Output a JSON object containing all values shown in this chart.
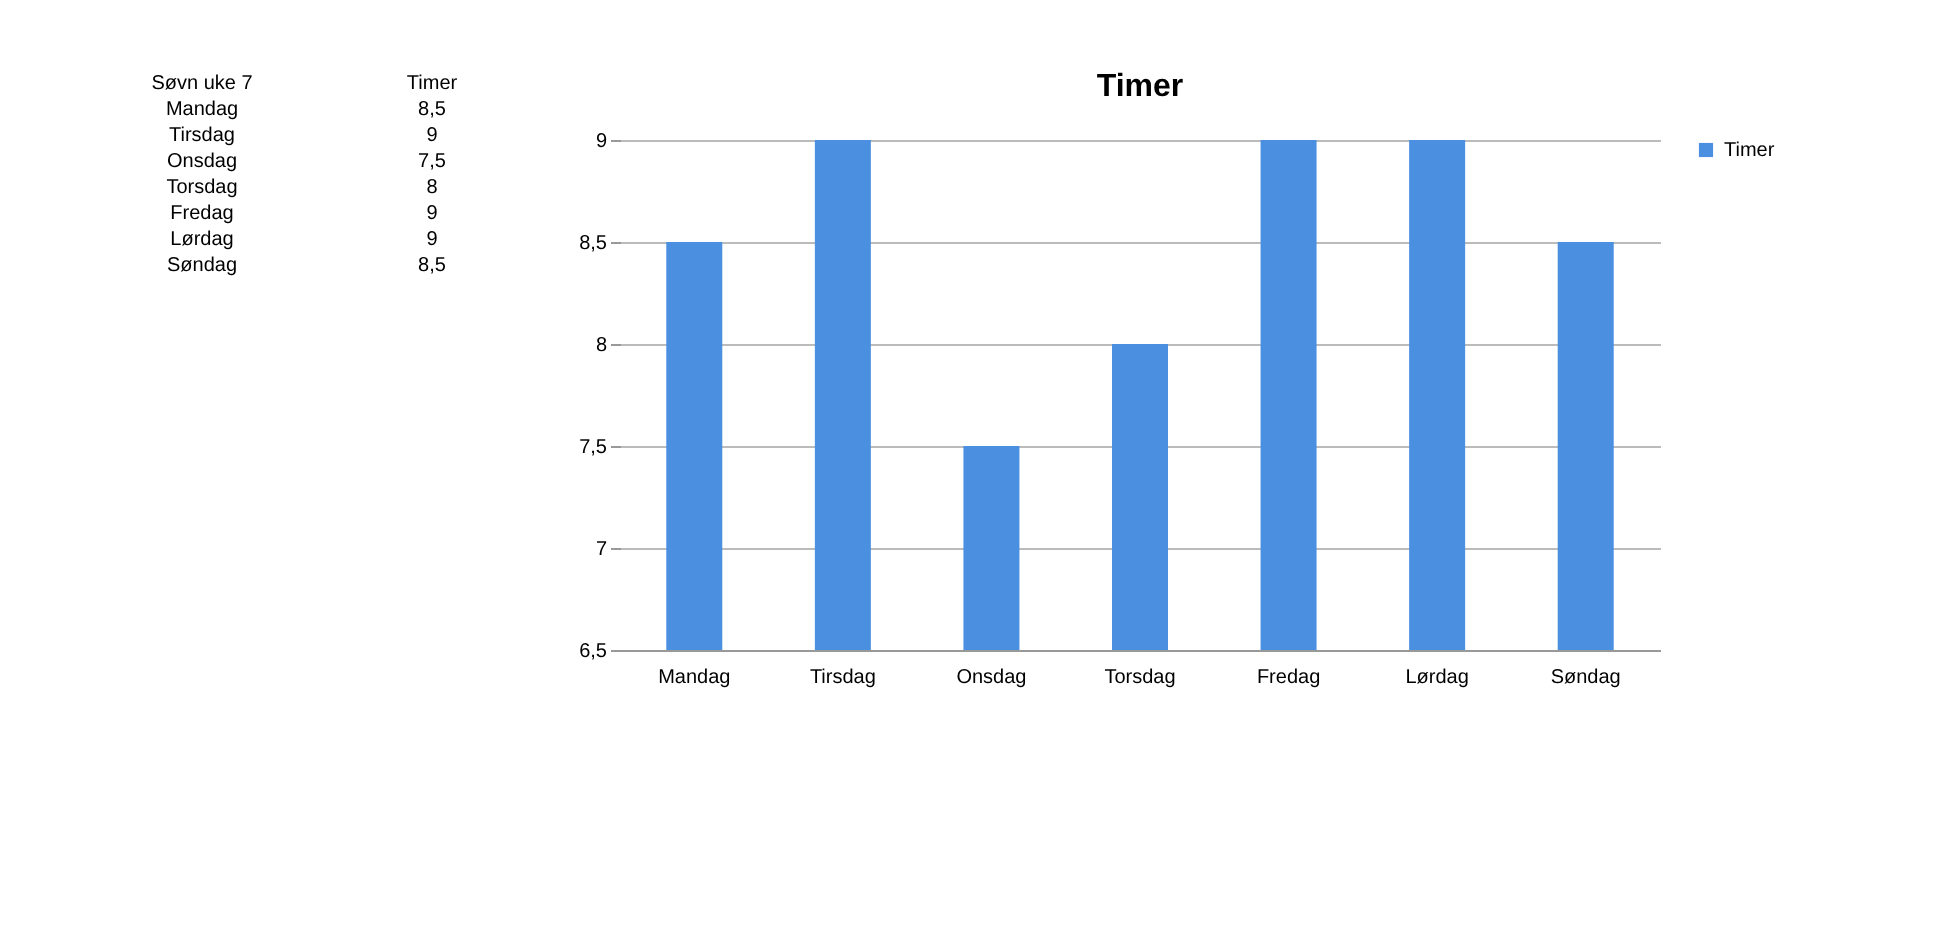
{
  "chart_data": [
    {
      "type": "other",
      "annotations": [
        "Søvn uke 7",
        "Timer",
        "Mandag",
        "8,5",
        "Tirsdag",
        "9",
        "Onsdag",
        "7,5",
        "Torsdag",
        "8",
        "Fredag",
        "9",
        "Lørdag",
        "9",
        "Søndag",
        "8,5"
      ]
    },
    {
      "type": "bar",
      "title": "Timer",
      "categories": [
        "Mandag",
        "Tirsdag",
        "Onsdag",
        "Torsdag",
        "Fredag",
        "Lørdag",
        "Søndag"
      ],
      "series": [
        {
          "name": "Timer",
          "color": "#4a8fe0",
          "values": [
            8.5,
            9,
            7.5,
            8,
            9,
            9,
            8.5
          ]
        }
      ],
      "ylim": [
        6.5,
        9
      ],
      "yticks": [
        {
          "value": 6.5,
          "label": "6,5"
        },
        7,
        {
          "value": 7.5,
          "label": "7,5"
        },
        8,
        {
          "value": 8.5,
          "label": "8,5"
        },
        9
      ],
      "grid": "y",
      "legend": "right"
    }
  ]
}
